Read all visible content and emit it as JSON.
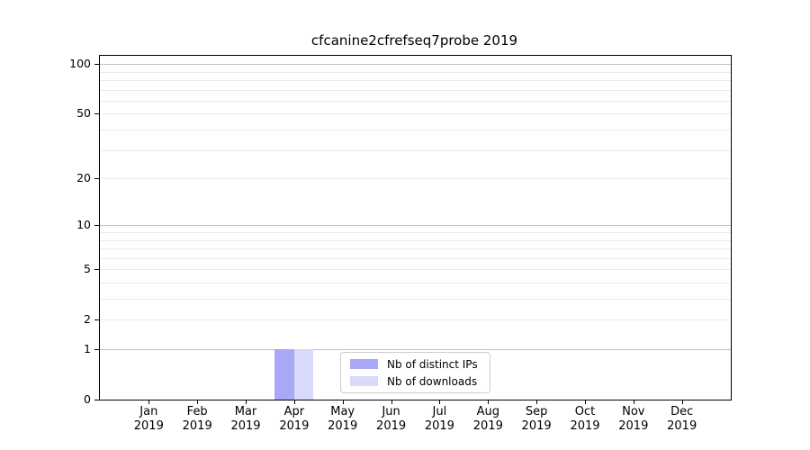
{
  "chart_data": {
    "type": "bar",
    "title": "cfcanine2cfrefseq7probe 2019",
    "categories": [
      "Jan",
      "Feb",
      "Mar",
      "Apr",
      "May",
      "Jun",
      "Jul",
      "Aug",
      "Sep",
      "Oct",
      "Nov",
      "Dec"
    ],
    "category_year": "2019",
    "series": [
      {
        "name": "Nb of distinct IPs",
        "color": "#a8a8f5",
        "values": [
          0,
          0,
          0,
          1,
          0,
          0,
          0,
          0,
          0,
          0,
          0,
          0
        ]
      },
      {
        "name": "Nb of downloads",
        "color": "#d9d9fa",
        "values": [
          0,
          0,
          0,
          1,
          0,
          0,
          0,
          0,
          0,
          0,
          0,
          0
        ]
      }
    ],
    "yscale": "log1p",
    "ylim": [
      0,
      112
    ],
    "yticks": [
      0,
      1,
      2,
      5,
      10,
      20,
      50,
      100
    ],
    "grid_major": [
      1,
      10,
      100
    ],
    "grid_minor": [
      2,
      3,
      4,
      5,
      6,
      7,
      8,
      9,
      20,
      30,
      40,
      50,
      60,
      70,
      80,
      90
    ],
    "grid_major_color": "#c0c0c0",
    "grid_minor_color": "#ebebeb",
    "legend_position": "lower center",
    "bar_group_width_fraction": 0.8,
    "background_color": "#ffffff"
  }
}
